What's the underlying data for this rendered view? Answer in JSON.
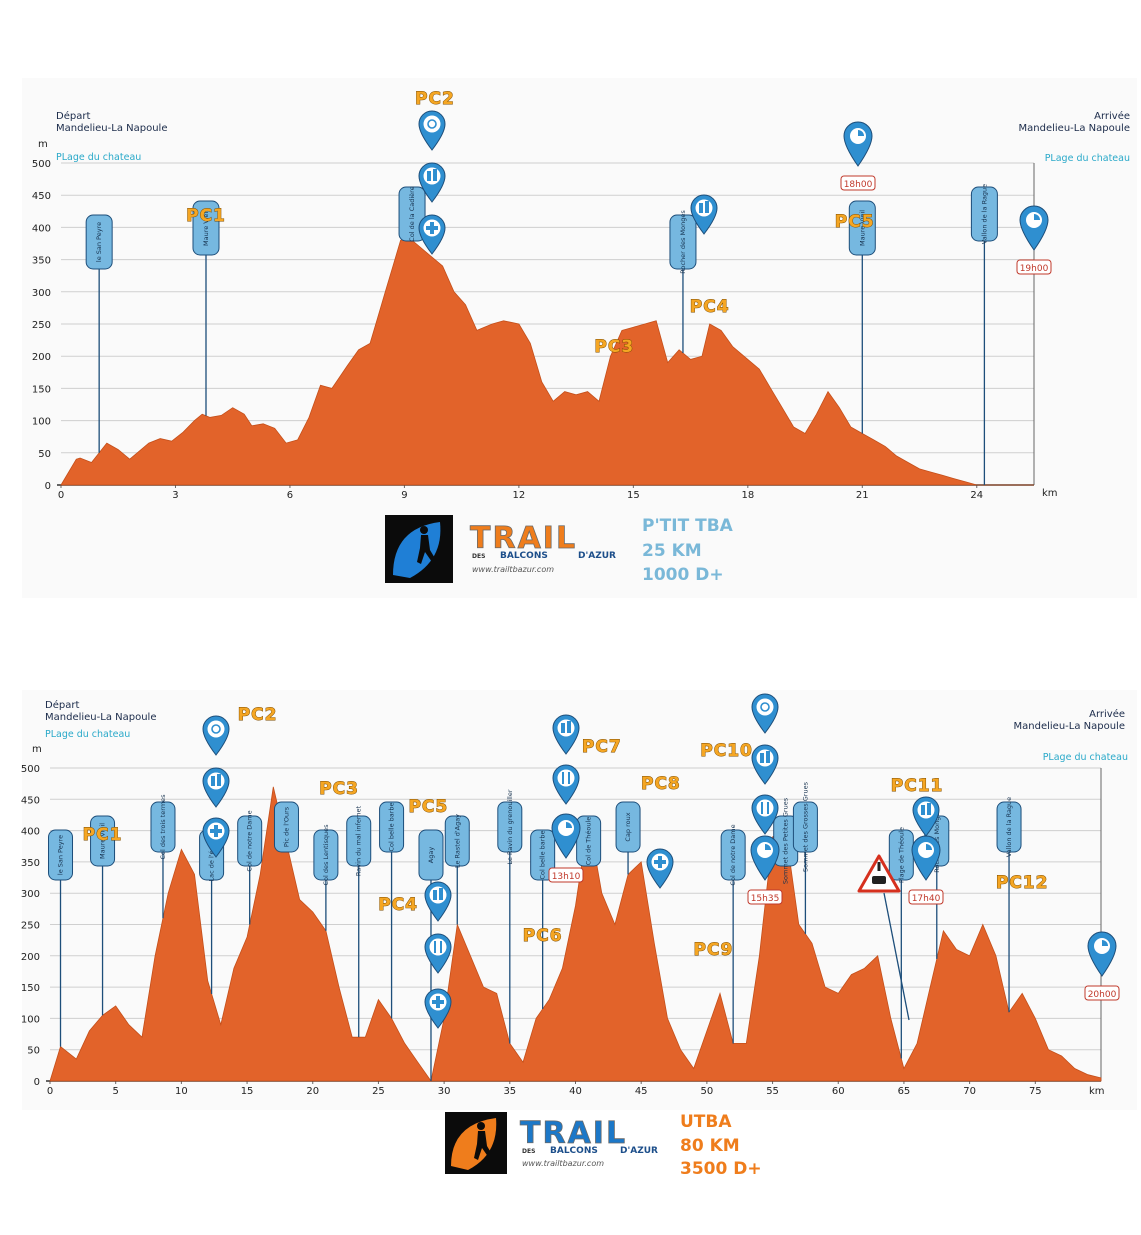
{
  "chart_data": [
    {
      "type": "area",
      "title": "P'TIT TBA",
      "subtitle_lines": [
        "P'TIT TBA",
        "25 KM",
        "1000 D+"
      ],
      "start": {
        "label": "Départ",
        "town": "Mandelieu-La Napoule",
        "place": "PLage du chateau"
      },
      "finish": {
        "label": "Arrivée",
        "town": "Mandelieu-La Napoule",
        "place": "PLage du chateau"
      },
      "ylabel": "m",
      "xlabel": "km",
      "xlim": [
        0,
        25.5
      ],
      "ylim": [
        0,
        500
      ],
      "xticks": [
        "0",
        "3",
        "6",
        "9",
        "12",
        "15",
        "18",
        "21",
        "24"
      ],
      "yticks": [
        "0",
        "50",
        "100",
        "150",
        "200",
        "250",
        "300",
        "350",
        "400",
        "450",
        "500"
      ],
      "x": [
        0,
        0.4,
        0.5,
        0.8,
        1.0,
        1.2,
        1.5,
        1.8,
        2.0,
        2.3,
        2.6,
        2.9,
        3.2,
        3.5,
        3.7,
        3.9,
        4.2,
        4.5,
        4.8,
        5.0,
        5.3,
        5.6,
        5.9,
        6.2,
        6.5,
        6.8,
        7.1,
        7.5,
        7.8,
        8.1,
        8.3,
        8.5,
        8.7,
        8.9,
        9.1,
        9.3,
        9.6,
        9.8,
        10.0,
        10.3,
        10.6,
        10.9,
        11.3,
        11.6,
        12.0,
        12.3,
        12.6,
        12.9,
        13.2,
        13.5,
        13.8,
        14.1,
        14.4,
        14.7,
        15.0,
        15.3,
        15.6,
        15.9,
        16.2,
        16.5,
        16.8,
        17.0,
        17.3,
        17.6,
        18.0,
        18.3,
        18.6,
        18.9,
        19.2,
        19.5,
        19.8,
        20.1,
        20.4,
        20.7,
        21.0,
        21.3,
        21.6,
        21.9,
        22.2,
        22.5,
        22.8,
        23.1,
        23.4,
        23.7,
        24.0,
        24.3,
        24.6,
        24.9,
        25.2,
        25.5
      ],
      "y": [
        0,
        40,
        42,
        35,
        50,
        65,
        55,
        40,
        50,
        65,
        72,
        68,
        82,
        100,
        110,
        105,
        108,
        120,
        110,
        92,
        95,
        88,
        65,
        70,
        105,
        155,
        150,
        185,
        210,
        220,
        260,
        300,
        340,
        380,
        385,
        375,
        360,
        350,
        340,
        300,
        280,
        240,
        250,
        255,
        250,
        220,
        160,
        130,
        145,
        140,
        145,
        130,
        200,
        240,
        245,
        250,
        255,
        190,
        210,
        195,
        200,
        250,
        240,
        215,
        195,
        180,
        150,
        120,
        90,
        80,
        110,
        145,
        120,
        90,
        80,
        70,
        60,
        45,
        35,
        25,
        20,
        15,
        10,
        5,
        0,
        0,
        0,
        0,
        0,
        0
      ],
      "waypoints": [
        {
          "label": "le San Peyre",
          "km": 1.0
        },
        {
          "label": "Maure Vieil",
          "km": 3.8
        },
        {
          "label": "Col de la Cadière",
          "km": 9.2
        },
        {
          "label": "Rocher des Monges",
          "km": 16.3
        },
        {
          "label": "Maure Vieil",
          "km": 21.0
        },
        {
          "label": "Vallon de la Rague",
          "km": 24.2
        }
      ],
      "checkpoints": [
        {
          "label": "PC1",
          "km": 3.8
        },
        {
          "label": "PC2",
          "km": 9.8
        },
        {
          "label": "PC3",
          "km": 14.5
        },
        {
          "label": "PC4",
          "km": 17.0
        },
        {
          "label": "PC5",
          "km": 20.8
        }
      ],
      "cutoffs": [
        {
          "label": "18h00",
          "km": 20.8
        },
        {
          "label": "19h00",
          "km": 25.0
        }
      ]
    },
    {
      "type": "area",
      "title": "UTBA",
      "subtitle_lines": [
        "UTBA",
        "80 KM",
        "3500 D+"
      ],
      "start": {
        "label": "Départ",
        "town": "Mandelieu-La Napoule",
        "place": "PLage du chateau"
      },
      "finish": {
        "label": "Arrivée",
        "town": "Mandelieu-La Napoule",
        "place": "PLage du chateau"
      },
      "ylabel": "m",
      "xlabel": "km",
      "xlim": [
        0,
        80
      ],
      "ylim": [
        0,
        500
      ],
      "xticks": [
        "0",
        "5",
        "10",
        "15",
        "20",
        "25",
        "30",
        "35",
        "40",
        "45",
        "50",
        "55",
        "60",
        "65",
        "70",
        "75"
      ],
      "yticks": [
        "0",
        "50",
        "100",
        "150",
        "200",
        "250",
        "300",
        "350",
        "400",
        "450",
        "500"
      ],
      "x": [
        0,
        0.8,
        2,
        3,
        4,
        5,
        6,
        7,
        8,
        9,
        10,
        11,
        12,
        13,
        14,
        15,
        16,
        17,
        18,
        19,
        20,
        21,
        22,
        23,
        24,
        25,
        26,
        27,
        28,
        29,
        30,
        31,
        32,
        33,
        34,
        35,
        36,
        37,
        38,
        39,
        40,
        41,
        42,
        43,
        44,
        45,
        46,
        47,
        48,
        49,
        50,
        51,
        52,
        53,
        54,
        55,
        56,
        57,
        58,
        59,
        60,
        61,
        62,
        63,
        64,
        65,
        66,
        67,
        68,
        69,
        70,
        71,
        72,
        73,
        74,
        75,
        76,
        77,
        78,
        79,
        80
      ],
      "y": [
        0,
        55,
        35,
        80,
        105,
        120,
        90,
        70,
        200,
        300,
        370,
        330,
        160,
        90,
        180,
        230,
        330,
        470,
        380,
        290,
        270,
        240,
        150,
        70,
        70,
        130,
        100,
        60,
        30,
        0,
        100,
        250,
        200,
        150,
        140,
        60,
        30,
        100,
        130,
        180,
        280,
        420,
        300,
        250,
        330,
        350,
        220,
        100,
        50,
        20,
        80,
        140,
        60,
        60,
        200,
        390,
        400,
        250,
        220,
        150,
        140,
        170,
        180,
        200,
        100,
        20,
        60,
        150,
        240,
        210,
        200,
        250,
        200,
        110,
        140,
        100,
        50,
        40,
        20,
        10,
        5
      ],
      "waypoints": [
        {
          "label": "le San Peyre",
          "km": 0.8
        },
        {
          "label": "Maure Vieil",
          "km": 4.0
        },
        {
          "label": "Col des trois termes",
          "km": 8.6
        },
        {
          "label": "Lac de l'écureuil",
          "km": 12.3
        },
        {
          "label": "Col de notre Dame",
          "km": 15.2
        },
        {
          "label": "Pic de l'Ours",
          "km": 18.0
        },
        {
          "label": "Col des Lentisques",
          "km": 21.0
        },
        {
          "label": "Ravin du mal infernet",
          "km": 23.5
        },
        {
          "label": "Col belle barbe",
          "km": 26.0
        },
        {
          "label": "Agay",
          "km": 29.0
        },
        {
          "label": "Le Rastel d'Agay",
          "km": 31.0
        },
        {
          "label": "Le Ravin du grenouiller",
          "km": 35.0
        },
        {
          "label": "Col belle barbe",
          "km": 37.5
        },
        {
          "label": "Col de Théoule",
          "km": 41.0
        },
        {
          "label": "Cap roux",
          "km": 44.0
        },
        {
          "label": "Col de notre Dame",
          "km": 52.0
        },
        {
          "label": "Sommet des Petites Grues",
          "km": 56.0
        },
        {
          "label": "Sommet des Grosses Grues",
          "km": 57.5
        },
        {
          "label": "Plage de Théoule",
          "km": 64.8
        },
        {
          "label": "Rocher des Monges",
          "km": 67.5
        },
        {
          "label": "Vallon de la Rague",
          "km": 73.0
        }
      ],
      "checkpoints": [
        {
          "label": "PC1",
          "km": 4.0
        },
        {
          "label": "PC2",
          "km": 15.8
        },
        {
          "label": "PC3",
          "km": 22.0
        },
        {
          "label": "PC4",
          "km": 26.5
        },
        {
          "label": "PC5",
          "km": 28.8
        },
        {
          "label": "PC6",
          "km": 37.5
        },
        {
          "label": "PC7",
          "km": 42.0
        },
        {
          "label": "PC8",
          "km": 46.5
        },
        {
          "label": "PC9",
          "km": 50.5
        },
        {
          "label": "PC10",
          "km": 51.5
        },
        {
          "label": "PC11",
          "km": 66.0
        },
        {
          "label": "PC12",
          "km": 74.0
        }
      ],
      "cutoffs": [
        {
          "label": "13h10",
          "km": 38.5
        },
        {
          "label": "15h35",
          "km": 53.5
        },
        {
          "label": "17h40",
          "km": 66.3
        },
        {
          "label": "20h00",
          "km": 80.0
        }
      ]
    }
  ],
  "branding": {
    "logo_main": "TRAIL",
    "logo_sub_left": "DES",
    "logo_sub_mid": "BALCONS",
    "logo_sub_right": "D'AZUR",
    "logo_url_text": "www.trailtbazur.com"
  },
  "colors": {
    "profile": "#e2632a",
    "pin": "#2f8fd0",
    "pin_border": "#1d4e7a",
    "pc_text": "#f5a623",
    "race1_text": "#7ab8d8",
    "race2_text": "#ef7d1c"
  },
  "icons": [
    "medical-icon",
    "drink-icon",
    "first-aid-icon",
    "food-icon",
    "timer-icon",
    "warning-icon",
    "runner-icon"
  ]
}
